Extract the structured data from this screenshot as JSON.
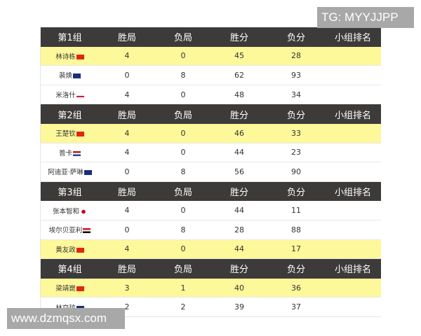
{
  "columns": [
    "胜局",
    "负局",
    "胜分",
    "负分",
    "小组排名"
  ],
  "groups": [
    {
      "title": "第1组",
      "players": [
        {
          "name": "林诗栋",
          "flag": "china",
          "highlight": true,
          "w": "4",
          "l": "0",
          "pf": "45",
          "pa": "28",
          "rank": ""
        },
        {
          "name": "裴焕",
          "flag": "australia",
          "highlight": false,
          "w": "0",
          "l": "8",
          "pf": "62",
          "pa": "93",
          "rank": ""
        },
        {
          "name": "米洛什",
          "flag": "poland",
          "highlight": false,
          "w": "4",
          "l": "0",
          "pf": "48",
          "pa": "34",
          "rank": ""
        }
      ]
    },
    {
      "title": "第2组",
      "players": [
        {
          "name": "王楚钦",
          "flag": "china",
          "highlight": true,
          "w": "4",
          "l": "0",
          "pf": "46",
          "pa": "33",
          "rank": ""
        },
        {
          "name": "普卡",
          "flag": "netherlands",
          "highlight": false,
          "w": "4",
          "l": "0",
          "pf": "44",
          "pa": "23",
          "rank": ""
        },
        {
          "name": "阿迪亚·萨琳",
          "flag": "australia",
          "highlight": false,
          "w": "0",
          "l": "8",
          "pf": "56",
          "pa": "90",
          "rank": ""
        }
      ]
    },
    {
      "title": "第3组",
      "players": [
        {
          "name": "张本智和",
          "flag": "japan",
          "highlight": false,
          "w": "4",
          "l": "0",
          "pf": "44",
          "pa": "11",
          "rank": ""
        },
        {
          "name": "埃尔贝亚利",
          "flag": "egypt",
          "highlight": false,
          "w": "0",
          "l": "8",
          "pf": "28",
          "pa": "88",
          "rank": ""
        },
        {
          "name": "黄友政",
          "flag": "china",
          "highlight": true,
          "w": "4",
          "l": "0",
          "pf": "44",
          "pa": "17",
          "rank": ""
        }
      ]
    },
    {
      "title": "第4组",
      "players": [
        {
          "name": "梁靖崑",
          "flag": "china",
          "highlight": true,
          "w": "3",
          "l": "1",
          "pf": "40",
          "pa": "36",
          "rank": ""
        },
        {
          "name": "林交玟",
          "flag": "australia",
          "highlight": false,
          "w": "2",
          "l": "2",
          "pf": "39",
          "pa": "37",
          "rank": ""
        }
      ]
    }
  ],
  "watermarks": {
    "top": "TG: MYYJJPP",
    "bottom": "www.dzmqsx.com"
  },
  "colors": {
    "header_bg": "#3d3b39",
    "highlight_bg": "#fdf89a"
  }
}
